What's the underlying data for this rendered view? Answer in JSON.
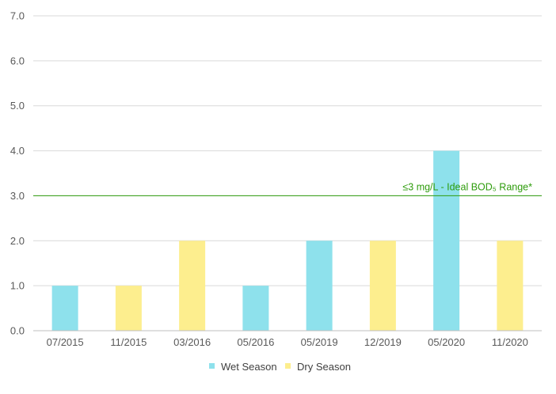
{
  "chart_data": {
    "type": "bar",
    "categories": [
      "07/2015",
      "11/2015",
      "03/2016",
      "05/2016",
      "05/2019",
      "12/2019",
      "05/2020",
      "11/2020"
    ],
    "values": [
      1.0,
      1.0,
      2.0,
      1.0,
      2.0,
      2.0,
      4.0,
      2.0
    ],
    "seasons": [
      "Wet Season",
      "Dry Season",
      "Dry Season",
      "Wet Season",
      "Wet Season",
      "Dry Season",
      "Wet Season",
      "Dry Season"
    ],
    "series": [
      {
        "name": "Wet Season",
        "color": "#8ee1ec"
      },
      {
        "name": "Dry Season",
        "color": "#fdee8e"
      }
    ],
    "yticks": [
      "0.0",
      "1.0",
      "2.0",
      "3.0",
      "4.0",
      "5.0",
      "6.0",
      "7.0"
    ],
    "ylim": [
      0,
      7
    ],
    "grid": true,
    "legend": "bottom-center",
    "reference_line": {
      "value": 3.0,
      "label": "≤3 mg/L - Ideal BOD₅ Range*",
      "color": "#2e9c0c"
    },
    "title": "",
    "xlabel": "",
    "ylabel": ""
  }
}
